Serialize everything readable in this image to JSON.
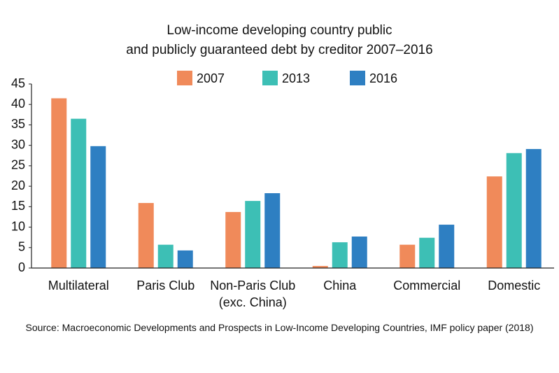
{
  "chart_data": {
    "type": "bar",
    "title": "Low-income developing country public\nand publicly guaranteed debt by creditor 2007–2016",
    "categories": [
      "Multilateral",
      "Paris Club",
      "Non-Paris Club\n(exc. China)",
      "China",
      "Commercial",
      "Domestic"
    ],
    "series": [
      {
        "name": "2007",
        "color": "#f08a5a",
        "values": [
          41.5,
          15.9,
          13.7,
          0.5,
          5.7,
          22.4
        ]
      },
      {
        "name": "2013",
        "color": "#3dbfb5",
        "values": [
          36.5,
          5.7,
          16.4,
          6.3,
          7.4,
          28.1
        ]
      },
      {
        "name": "2016",
        "color": "#2e7fc2",
        "values": [
          29.8,
          4.3,
          18.3,
          7.7,
          10.6,
          29.1
        ]
      }
    ],
    "ylim": [
      0,
      45
    ],
    "yticks": [
      0,
      5,
      10,
      15,
      20,
      25,
      30,
      35,
      40,
      45
    ],
    "source": "Source: Macroeconomic Developments and Prospects in Low-Income Developing Countries, IMF policy paper (2018)"
  }
}
